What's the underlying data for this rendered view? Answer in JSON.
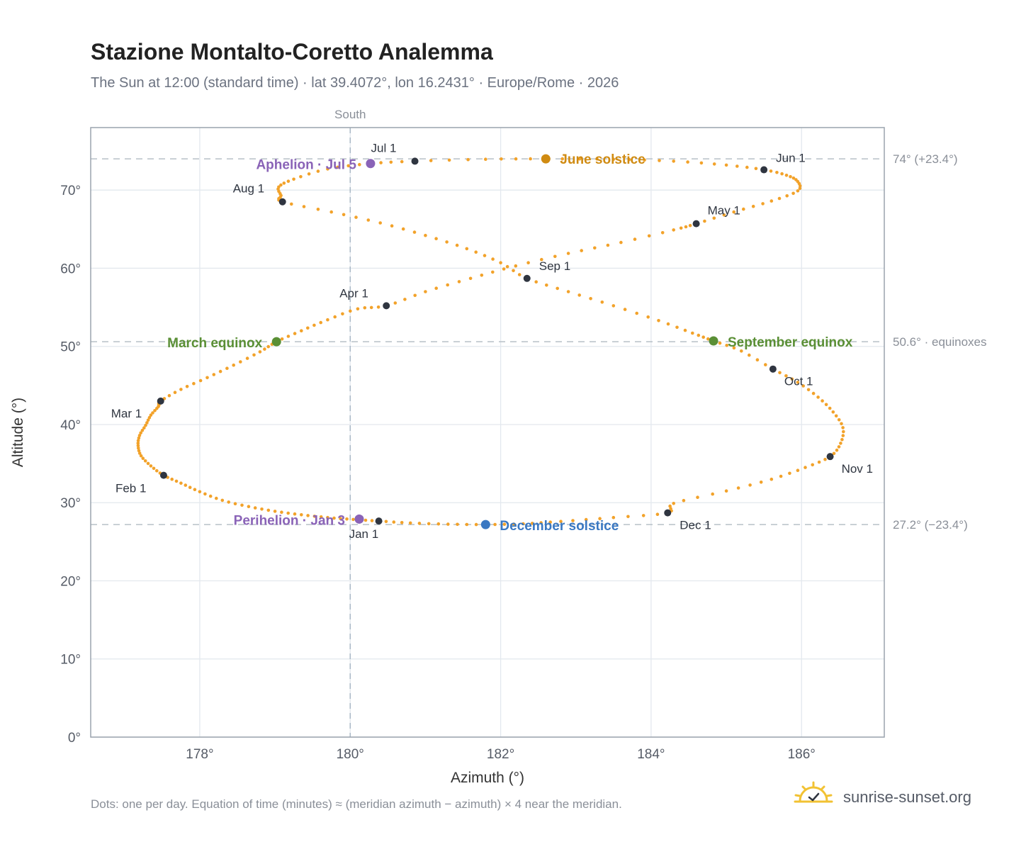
{
  "header": {
    "title": "Stazione Montalto-Coretto Analemma",
    "subtitle": "The Sun at 12:00 (standard time) · lat 39.4072°, lon 16.2431° · Europe/Rome · 2026"
  },
  "footer": {
    "note": "Dots: one per day. Equation of time (minutes) ≈ (meridian azimuth − azimuth) × 4 near the meridian.",
    "brand": "sunrise-sunset.org",
    "brand_icon": "sun-check-icon"
  },
  "colors": {
    "path": "#f2a22a",
    "month_marker": "#2f3540",
    "june": "#d08b12",
    "december": "#3a78c2",
    "equinox": "#5a8f35",
    "apsis": "#8a63b7",
    "frame": "#9aa3ad",
    "grid": "#e3e8ee",
    "reference_line": "#b8c0c8",
    "brand_icon": "#f2c233"
  },
  "chart_data": {
    "type": "scatter",
    "xlabel": "Azimuth (°)",
    "ylabel": "Altitude (°)",
    "xlim": [
      176.55,
      187.1
    ],
    "ylim": [
      0,
      78
    ],
    "x_ticks": [
      {
        "value": 178,
        "label": "178°"
      },
      {
        "value": 180,
        "label": "180°"
      },
      {
        "value": 182,
        "label": "182°"
      },
      {
        "value": 184,
        "label": "184°"
      },
      {
        "value": 186,
        "label": "186°"
      }
    ],
    "y_ticks": [
      {
        "value": 0,
        "label": "0°"
      },
      {
        "value": 10,
        "label": "10°"
      },
      {
        "value": 20,
        "label": "20°"
      },
      {
        "value": 30,
        "label": "30°"
      },
      {
        "value": 40,
        "label": "40°"
      },
      {
        "value": 50,
        "label": "50°"
      },
      {
        "value": 60,
        "label": "60°"
      },
      {
        "value": 70,
        "label": "70°"
      }
    ],
    "grid": true,
    "meridian": {
      "azimuth": 180,
      "label": "South"
    },
    "reference_lines": [
      {
        "altitude": 74.0,
        "label": "74° (+23.4°)"
      },
      {
        "altitude": 50.6,
        "label": "50.6° · equinoxes"
      },
      {
        "altitude": 27.2,
        "label": "27.2° (−23.4°)"
      }
    ],
    "analemma_points": [
      [
        180.38,
        27.65
      ],
      [
        180.04,
        27.85
      ],
      [
        179.7,
        28.1
      ],
      [
        179.35,
        28.45
      ],
      [
        179.0,
        28.9
      ],
      [
        178.65,
        29.5
      ],
      [
        178.3,
        30.3
      ],
      [
        178.0,
        31.4
      ],
      [
        177.75,
        32.5
      ],
      [
        177.52,
        33.5
      ],
      [
        177.35,
        34.7
      ],
      [
        177.22,
        36.0
      ],
      [
        177.18,
        37.3
      ],
      [
        177.2,
        38.6
      ],
      [
        177.28,
        39.9
      ],
      [
        177.35,
        41.2
      ],
      [
        177.45,
        42.3
      ],
      [
        177.48,
        43.0
      ],
      [
        177.75,
        44.5
      ],
      [
        178.1,
        46.0
      ],
      [
        178.45,
        47.6
      ],
      [
        178.8,
        49.3
      ],
      [
        179.02,
        50.6
      ],
      [
        179.35,
        52.0
      ],
      [
        179.7,
        53.4
      ],
      [
        180.1,
        54.8
      ],
      [
        180.48,
        55.2
      ],
      [
        181.0,
        57.0
      ],
      [
        181.6,
        58.7
      ],
      [
        182.2,
        60.3
      ],
      [
        182.9,
        61.9
      ],
      [
        183.6,
        63.3
      ],
      [
        184.3,
        64.9
      ],
      [
        184.6,
        65.7
      ],
      [
        185.1,
        67.2
      ],
      [
        185.6,
        68.6
      ],
      [
        185.95,
        69.9
      ],
      [
        185.95,
        71.1
      ],
      [
        185.8,
        71.9
      ],
      [
        185.5,
        72.6
      ],
      [
        185.0,
        73.2
      ],
      [
        184.3,
        73.7
      ],
      [
        183.5,
        73.95
      ],
      [
        182.6,
        74.0
      ],
      [
        181.8,
        73.95
      ],
      [
        180.86,
        73.7
      ],
      [
        180.27,
        73.4
      ],
      [
        179.7,
        72.7
      ],
      [
        179.25,
        71.4
      ],
      [
        179.05,
        70.4
      ],
      [
        179.08,
        69.3
      ],
      [
        179.1,
        68.5
      ],
      [
        179.75,
        67.2
      ],
      [
        180.4,
        65.8
      ],
      [
        181.0,
        64.2
      ],
      [
        181.55,
        62.5
      ],
      [
        182.0,
        60.7
      ],
      [
        182.35,
        58.7
      ],
      [
        182.9,
        57.0
      ],
      [
        183.5,
        55.2
      ],
      [
        184.1,
        53.3
      ],
      [
        184.55,
        51.7
      ],
      [
        184.83,
        50.7
      ],
      [
        185.2,
        49.4
      ],
      [
        185.62,
        47.1
      ],
      [
        185.95,
        45.4
      ],
      [
        186.22,
        43.5
      ],
      [
        186.42,
        41.6
      ],
      [
        186.55,
        39.6
      ],
      [
        186.52,
        37.6
      ],
      [
        186.38,
        35.9
      ],
      [
        186.05,
        34.5
      ],
      [
        185.6,
        33.0
      ],
      [
        185.0,
        31.5
      ],
      [
        184.3,
        29.9
      ],
      [
        184.22,
        28.7
      ],
      [
        183.5,
        28.1
      ],
      [
        182.8,
        27.6
      ],
      [
        182.3,
        27.3
      ],
      [
        181.8,
        27.2
      ],
      [
        181.3,
        27.25
      ],
      [
        180.8,
        27.4
      ],
      [
        180.38,
        27.65
      ]
    ],
    "month_markers": [
      {
        "label": "Jan 1",
        "x": 180.38,
        "y": 27.65
      },
      {
        "label": "Feb 1",
        "x": 177.52,
        "y": 33.5
      },
      {
        "label": "Mar 1",
        "x": 177.48,
        "y": 43.0
      },
      {
        "label": "Apr 1",
        "x": 180.48,
        "y": 55.2
      },
      {
        "label": "May 1",
        "x": 184.6,
        "y": 65.7
      },
      {
        "label": "Jun 1",
        "x": 185.5,
        "y": 72.6
      },
      {
        "label": "Jul 1",
        "x": 180.86,
        "y": 73.7
      },
      {
        "label": "Aug 1",
        "x": 179.1,
        "y": 68.5
      },
      {
        "label": "Sep 1",
        "x": 182.35,
        "y": 58.7
      },
      {
        "label": "Oct 1",
        "x": 185.62,
        "y": 47.1
      },
      {
        "label": "Nov 1",
        "x": 186.38,
        "y": 35.9
      },
      {
        "label": "Dec 1",
        "x": 184.22,
        "y": 28.7
      }
    ],
    "events": [
      {
        "label": "June solstice",
        "x": 182.6,
        "y": 74.0,
        "kind": "june"
      },
      {
        "label": "December solstice",
        "x": 181.8,
        "y": 27.2,
        "kind": "december"
      },
      {
        "label": "March equinox",
        "x": 179.02,
        "y": 50.6,
        "kind": "equinox"
      },
      {
        "label": "September equinox",
        "x": 184.83,
        "y": 50.7,
        "kind": "equinox"
      },
      {
        "label": "Aphelion · Jul 5",
        "x": 180.27,
        "y": 73.4,
        "kind": "apsis"
      },
      {
        "label": "Perihelion · Jan 3",
        "x": 180.12,
        "y": 27.9,
        "kind": "apsis"
      }
    ]
  }
}
